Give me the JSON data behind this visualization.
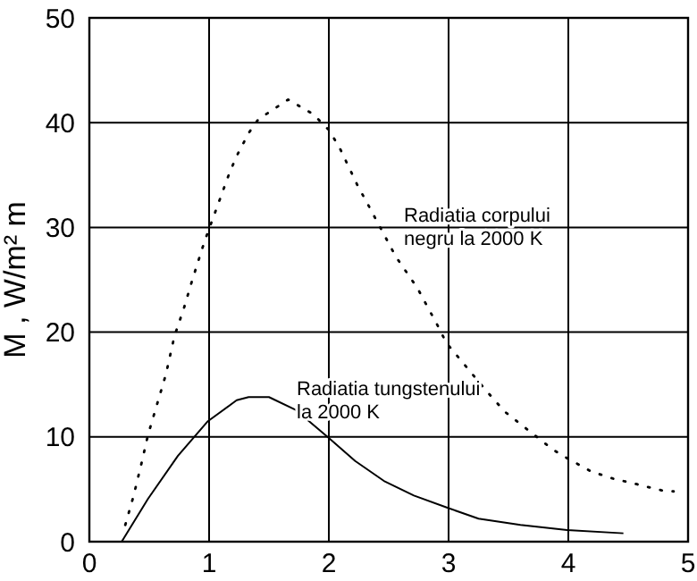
{
  "chart_data": {
    "type": "line",
    "ylabel": "M , W/m² m",
    "xlim": [
      0,
      5
    ],
    "ylim": [
      0,
      50
    ],
    "xticks": [
      0,
      1,
      2,
      3,
      4,
      5
    ],
    "yticks": [
      0,
      10,
      20,
      30,
      40,
      50
    ],
    "grid": true,
    "marker": "none",
    "series": [
      {
        "color": "#000000",
        "line_style": "dotted",
        "x": [
          0.3,
          0.37,
          0.44,
          0.49,
          0.64,
          0.71,
          0.79,
          0.86,
          0.96,
          1.17,
          1.23,
          1.33,
          1.41,
          1.66,
          1.87,
          2.0,
          2.09,
          2.24,
          2.34,
          2.56,
          2.74,
          2.91,
          2.98,
          3.3,
          3.47,
          3.87,
          3.97,
          4.19,
          4.38,
          4.53,
          4.78,
          4.88
        ],
        "values": [
          1.6,
          4.4,
          7.7,
          10.2,
          16,
          19.6,
          22.3,
          25,
          28.6,
          35.2,
          36.8,
          39,
          40.3,
          42.2,
          40.8,
          39.3,
          37.6,
          34,
          31.9,
          27.2,
          24.2,
          20.6,
          19,
          14.6,
          12.4,
          8.8,
          8.1,
          6.7,
          6,
          5.6,
          4.9,
          4.8
        ]
      },
      {
        "color": "#000000",
        "line_style": "solid",
        "x": [
          0.27,
          0.49,
          0.74,
          0.99,
          1.23,
          1.33,
          1.5,
          1.72,
          2.0,
          2.22,
          2.46,
          2.71,
          3.0,
          3.25,
          3.6,
          3.99,
          4.46
        ],
        "values": [
          0,
          4.1,
          8.2,
          11.5,
          13.5,
          13.8,
          13.8,
          12.6,
          9.9,
          7.7,
          5.8,
          4.4,
          3.2,
          2.2,
          1.6,
          1.1,
          0.8
        ]
      }
    ],
    "annotations": [
      "Radiatia corpului\nnegru la 2000 K",
      "Radiatia tungstenului\nla 2000 K"
    ]
  }
}
